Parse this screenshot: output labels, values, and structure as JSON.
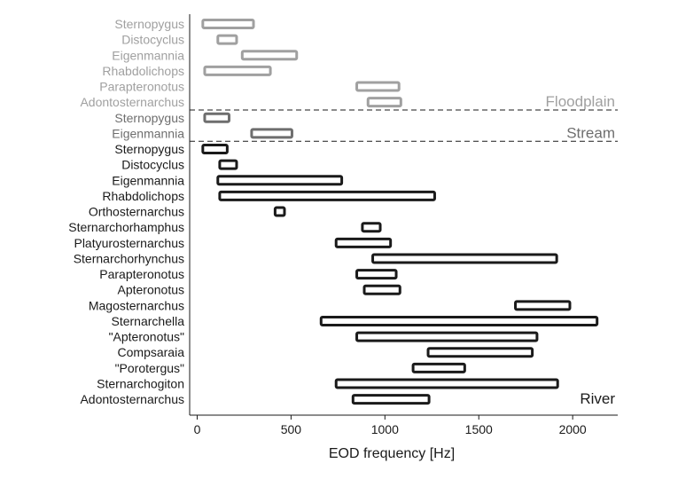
{
  "chart_data": {
    "type": "range-bar",
    "xlabel": "EOD frequency [Hz]",
    "xlim": [
      -40,
      2240
    ],
    "xticks": [
      0,
      500,
      1000,
      1500,
      2000
    ],
    "grid": false,
    "colors": {
      "Floodplain": "#a0a0a0",
      "Stream": "#6e6e6e",
      "River": "#1a1a1a"
    },
    "groups": [
      {
        "label": "Floodplain",
        "items": [
          {
            "name": "Sternopygus",
            "low": 30,
            "high": 300
          },
          {
            "name": "Distocyclus",
            "low": 110,
            "high": 210
          },
          {
            "name": "Eigenmannia",
            "low": 240,
            "high": 530
          },
          {
            "name": "Rhabdolichops",
            "low": 40,
            "high": 390
          },
          {
            "name": "Parapteronotus",
            "low": 850,
            "high": 1075
          },
          {
            "name": "Adontosternarchus",
            "low": 910,
            "high": 1085
          }
        ]
      },
      {
        "label": "Stream",
        "items": [
          {
            "name": "Sternopygus",
            "low": 40,
            "high": 170
          },
          {
            "name": "Eigenmannia",
            "low": 290,
            "high": 505
          }
        ]
      },
      {
        "label": "River",
        "items": [
          {
            "name": "Sternopygus",
            "low": 30,
            "high": 160
          },
          {
            "name": "Distocyclus",
            "low": 120,
            "high": 210
          },
          {
            "name": "Eigenmannia",
            "low": 110,
            "high": 770
          },
          {
            "name": "Rhabdolichops",
            "low": 120,
            "high": 1265
          },
          {
            "name": "Orthosternarchus",
            "low": 415,
            "high": 465
          },
          {
            "name": "Sternarchorhamphus",
            "low": 880,
            "high": 975
          },
          {
            "name": "Platyurosternarchus",
            "low": 740,
            "high": 1030
          },
          {
            "name": "Sternarchorhynchus",
            "low": 935,
            "high": 1915
          },
          {
            "name": "Parapteronotus",
            "low": 850,
            "high": 1060
          },
          {
            "name": "Apteronotus",
            "low": 890,
            "high": 1080
          },
          {
            "name": "Magosternarchus",
            "low": 1695,
            "high": 1985
          },
          {
            "name": "Sternarchella",
            "low": 660,
            "high": 2130
          },
          {
            "name": "\"Apteronotus\"",
            "low": 850,
            "high": 1810
          },
          {
            "name": "Compsaraia",
            "low": 1230,
            "high": 1785
          },
          {
            "name": "\"Porotergus\"",
            "low": 1150,
            "high": 1425
          },
          {
            "name": "Sternarchogiton",
            "low": 740,
            "high": 1920
          },
          {
            "name": "Adontosternarchus",
            "low": 830,
            "high": 1235
          }
        ]
      }
    ]
  }
}
